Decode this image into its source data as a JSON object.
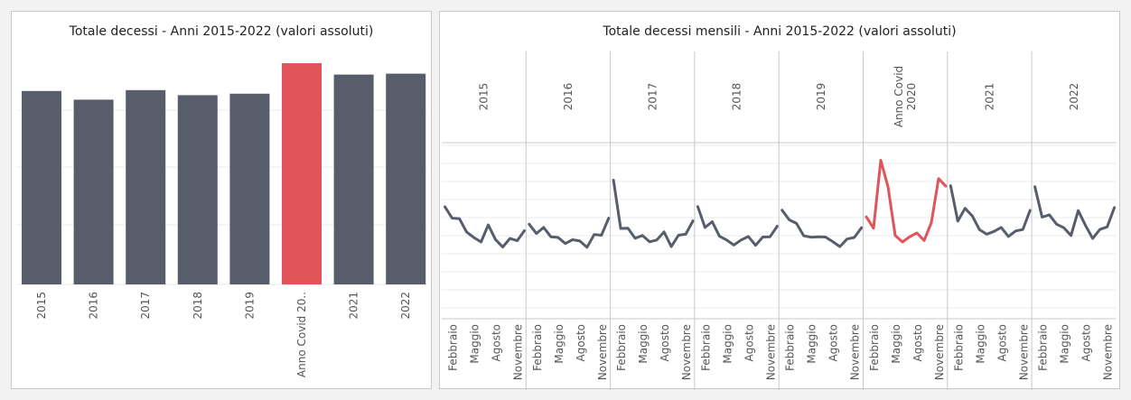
{
  "chart_data": [
    {
      "type": "bar",
      "title": "Totale decessi - Anni 2015-2022 (valori assoluti)",
      "categories": [
        "2015",
        "2016",
        "2017",
        "2018",
        "2019",
        "Anno Covid 20..",
        "2021",
        "2022"
      ],
      "values": [
        647,
        618,
        650,
        633,
        638,
        740,
        702,
        705
      ],
      "highlight_index": 5,
      "ylim": [
        0,
        740
      ],
      "colors": {
        "bar": "#575d6b",
        "highlight": "#e0545a",
        "grid": "#ebebeb"
      }
    },
    {
      "type": "line",
      "title": "Totale decessi mensili - Anni 2015-2022 (valori assoluti)",
      "panels": [
        "2015",
        "2016",
        "2017",
        "2018",
        "2019",
        "Anno Covid\n2020",
        "2021",
        "2022"
      ],
      "highlight_index": 5,
      "month_tick_labels": [
        "Febbraio",
        "Maggio",
        "Agosto",
        "Novembre"
      ],
      "ylim": [
        20000,
        90000
      ],
      "series": [
        {
          "values": [
            64500,
            60000,
            59800,
            54500,
            52300,
            50500,
            57300,
            51500,
            48500,
            51900,
            51000,
            55000
          ]
        },
        {
          "values": [
            57600,
            53900,
            56300,
            52600,
            52300,
            49900,
            51400,
            50900,
            48400,
            53500,
            53200,
            60000
          ]
        },
        {
          "values": [
            75100,
            55900,
            56000,
            52000,
            53100,
            50600,
            51300,
            54500,
            48700,
            53200,
            53600,
            58900
          ]
        },
        {
          "values": [
            64600,
            56300,
            58600,
            52800,
            51300,
            49300,
            51300,
            52700,
            49200,
            52500,
            52600,
            56800
          ]
        },
        {
          "values": [
            63200,
            59300,
            57900,
            53000,
            52400,
            52600,
            52500,
            50700,
            48700,
            51700,
            52300,
            56200
          ]
        },
        {
          "values": [
            60500,
            56000,
            83000,
            72500,
            53100,
            50500,
            52600,
            54100,
            51100,
            58200,
            75700,
            72700
          ]
        },
        {
          "values": [
            72900,
            58800,
            63900,
            60900,
            55400,
            53600,
            54700,
            56300,
            52700,
            54900,
            55500,
            63100
          ]
        },
        {
          "values": [
            72500,
            60400,
            61300,
            57600,
            56200,
            53100,
            63000,
            57100,
            51900,
            55500,
            56500,
            64200
          ]
        }
      ],
      "colors": {
        "line": "#575d6b",
        "highlight": "#e0545a",
        "grid": "#ebebeb",
        "divider": "#c8c8c8"
      }
    }
  ]
}
